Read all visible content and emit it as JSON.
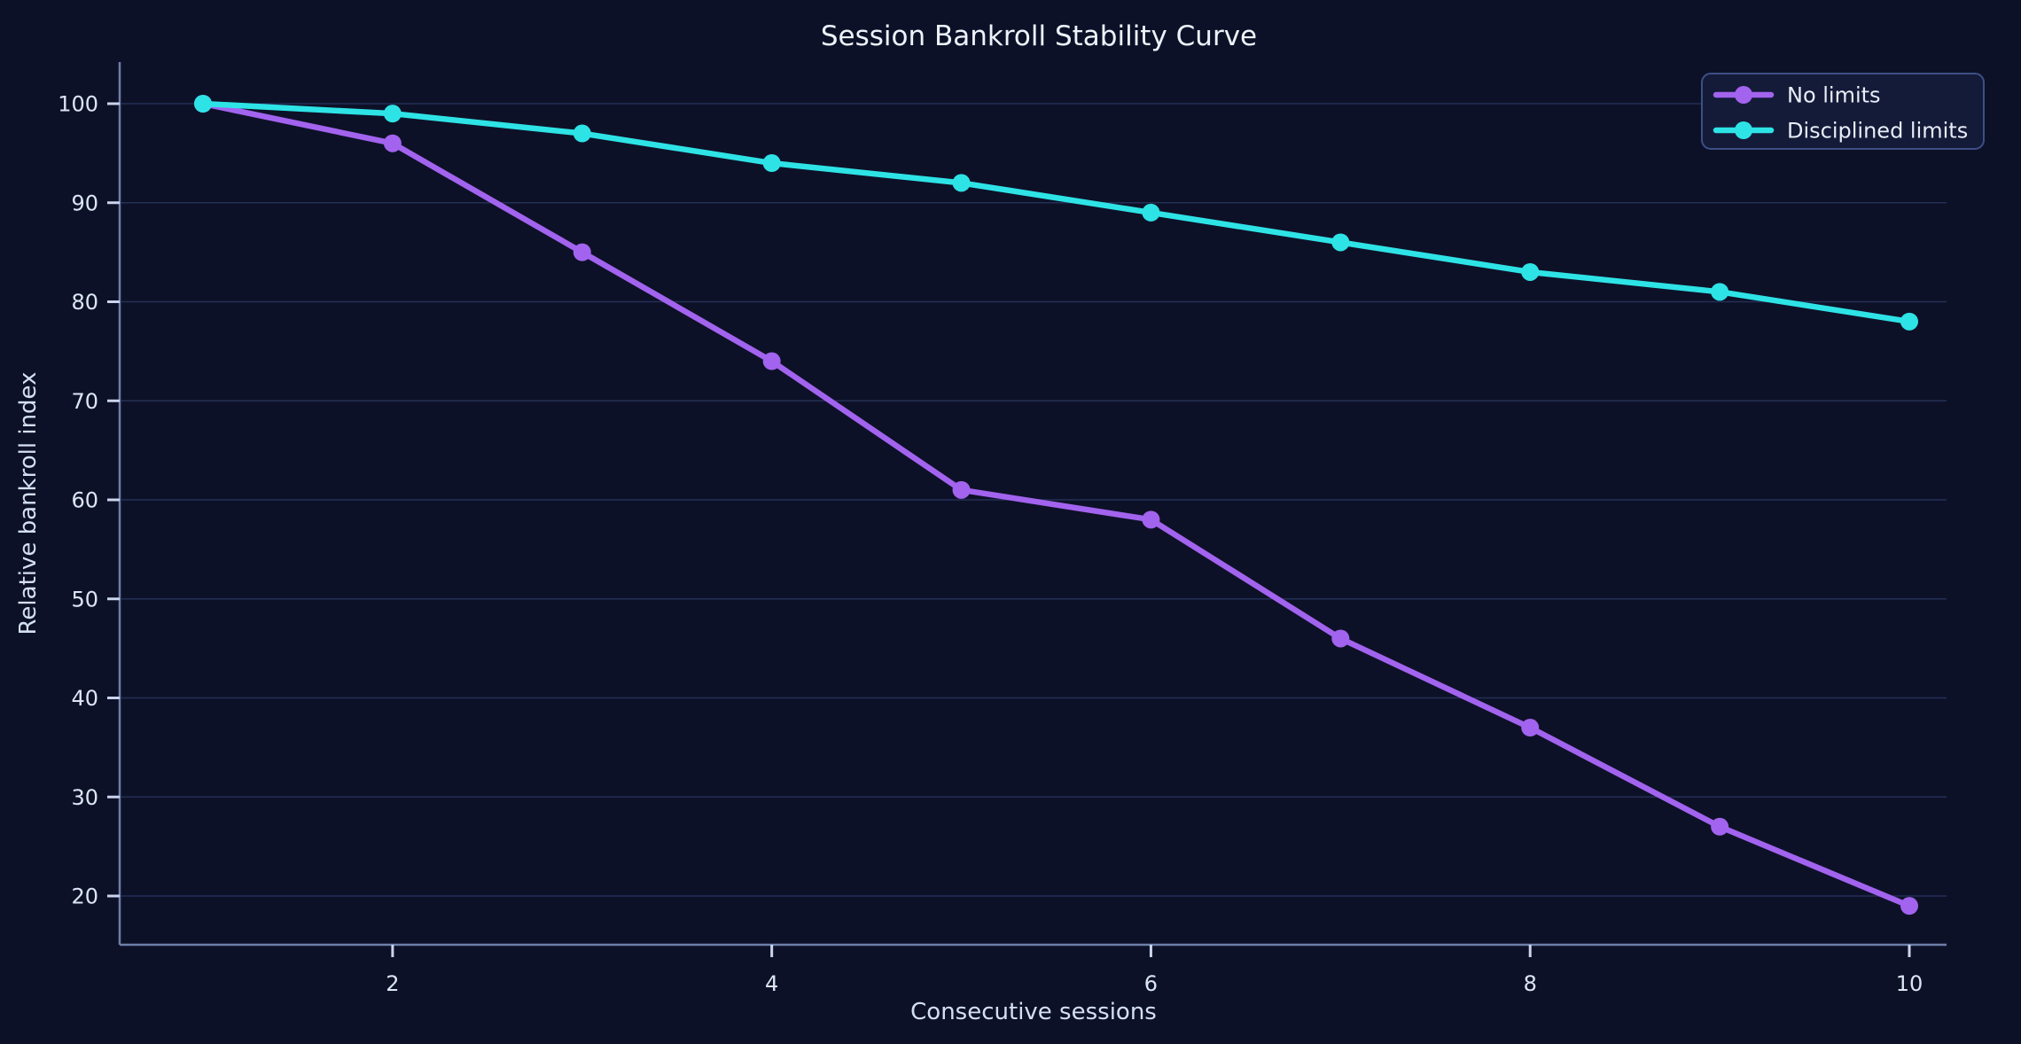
{
  "figure": {
    "background_color": "#0d1128"
  },
  "chart_data": {
    "type": "line",
    "title": "Session Bankroll Stability Curve",
    "xlabel": "Consecutive sessions",
    "ylabel": "Relative bankroll index",
    "x": [
      1,
      2,
      3,
      4,
      5,
      6,
      7,
      8,
      9,
      10
    ],
    "series": [
      {
        "name": "No limits",
        "color": "#a263ee",
        "values": [
          100,
          96,
          85,
          74,
          61,
          58,
          46,
          37,
          27,
          19
        ]
      },
      {
        "name": "Disciplined limits",
        "color": "#2ee3e6",
        "values": [
          100,
          99,
          97,
          94,
          92,
          89,
          86,
          83,
          81,
          78
        ]
      }
    ],
    "x_ticks": [
      2,
      4,
      6,
      8,
      10
    ],
    "y_ticks": [
      20,
      30,
      40,
      50,
      60,
      70,
      80,
      90,
      100
    ],
    "xlim": [
      0.56,
      10.2
    ],
    "ylim": [
      15.1,
      104.2
    ],
    "grid": "horizontal",
    "legend_position": "top-right",
    "theme": {
      "background": "#0d1128",
      "gridline_color": "#232f55",
      "spine_color": "#6e7ea8",
      "tick_mark_color": "#c9d5ec",
      "tick_label_color": "#dbe6f5",
      "title_color": "#eef2fa",
      "axis_label_color": "#d4e0f2",
      "legend_face_color": "#141c3a",
      "legend_border_color": "#3e4f86",
      "legend_text_color": "#e8edf7"
    }
  }
}
